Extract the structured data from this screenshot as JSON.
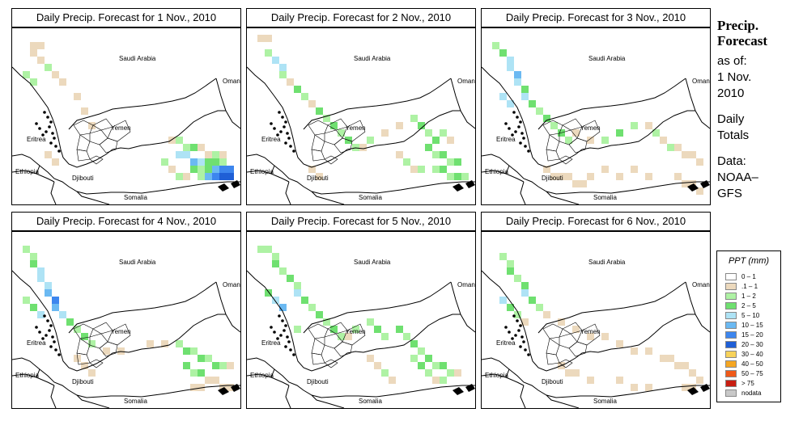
{
  "panels": [
    {
      "title": "Daily Precip. Forecast for  1 Nov., 2010"
    },
    {
      "title": "Daily Precip. Forecast for  2 Nov., 2010"
    },
    {
      "title": "Daily Precip. Forecast for  3 Nov., 2010"
    },
    {
      "title": "Daily Precip. Forecast for  4 Nov., 2010"
    },
    {
      "title": "Daily Precip. Forecast for  5 Nov., 2010"
    },
    {
      "title": "Daily Precip. Forecast for  6 Nov., 2010"
    }
  ],
  "map_labels": {
    "saudi_arabia": "Saudi Arabia",
    "oman": "Oman",
    "yemen": "Yemen",
    "eritrea": "Eritrea",
    "ethiopia": "Ethiopia",
    "djibouti": "Djibouti",
    "somalia": "Somalia"
  },
  "side": {
    "heading_1": "Precip.",
    "heading_2": "Forecast",
    "asof_1": "as of:",
    "asof_2": "1 Nov.",
    "asof_3": "2010",
    "daily_1": "Daily",
    "daily_2": "Totals",
    "data_1": "Data:",
    "data_2": "NOAA–",
    "data_3": "GFS"
  },
  "legend": {
    "title": "PPT (mm)",
    "items": [
      {
        "label": "0 – 1",
        "color": "#ffffff"
      },
      {
        "label": ".1 – 1",
        "color": "#ecd9bd"
      },
      {
        "label": "1 – 2",
        "color": "#aef2a4"
      },
      {
        "label": "2 – 5",
        "color": "#6fe070"
      },
      {
        "label": "5 – 10",
        "color": "#aee3f5"
      },
      {
        "label": "10 – 15",
        "color": "#6bb9f2"
      },
      {
        "label": "15 – 20",
        "color": "#3d86ee"
      },
      {
        "label": "20 – 30",
        "color": "#1f5fd6"
      },
      {
        "label": "30 – 40",
        "color": "#f7d25a"
      },
      {
        "label": "40 – 50",
        "color": "#f5a623"
      },
      {
        "label": "50 – 75",
        "color": "#ef5a19"
      },
      {
        "label": "> 75",
        "color": "#c81e12"
      },
      {
        "label": "nodata",
        "color": "#c8c8c8"
      }
    ]
  }
}
